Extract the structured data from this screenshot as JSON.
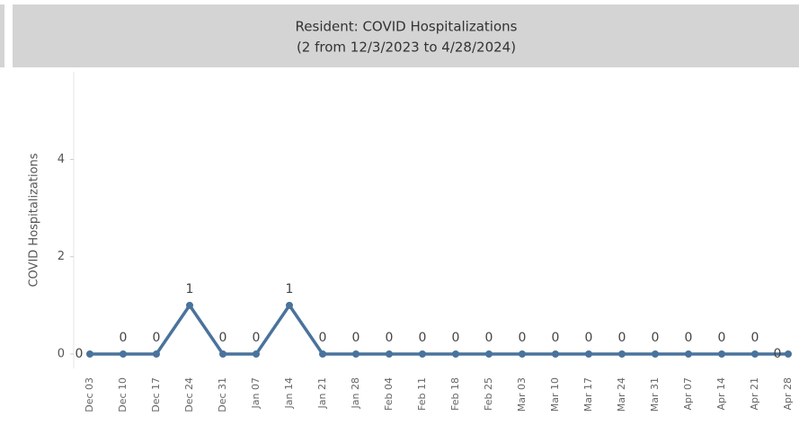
{
  "chart_data": {
    "type": "line",
    "title": "Resident: COVID Hospitalizations",
    "subtitle": "(2 from 12/3/2023 to 4/28/2024)",
    "y_label": "COVID Hospitalizations",
    "categories": [
      "Dec 03",
      "Dec 10",
      "Dec 17",
      "Dec 24",
      "Dec 31",
      "Jan 07",
      "Jan 14",
      "Jan 21",
      "Jan 28",
      "Feb 04",
      "Feb 11",
      "Feb 18",
      "Feb 25",
      "Mar 03",
      "Mar 10",
      "Mar 17",
      "Mar 24",
      "Mar 31",
      "Apr 07",
      "Apr 14",
      "Apr 21",
      "Apr 28"
    ],
    "series": [
      {
        "name": "COVID Hospitalizations",
        "color": "#4a739c",
        "values": [
          0,
          0,
          0,
          1,
          0,
          0,
          1,
          0,
          0,
          0,
          0,
          0,
          0,
          0,
          0,
          0,
          0,
          0,
          0,
          0,
          0,
          0
        ]
      }
    ],
    "ylim": [
      0,
      5.8
    ],
    "yticks": [
      0,
      2,
      4
    ],
    "grid": false
  }
}
